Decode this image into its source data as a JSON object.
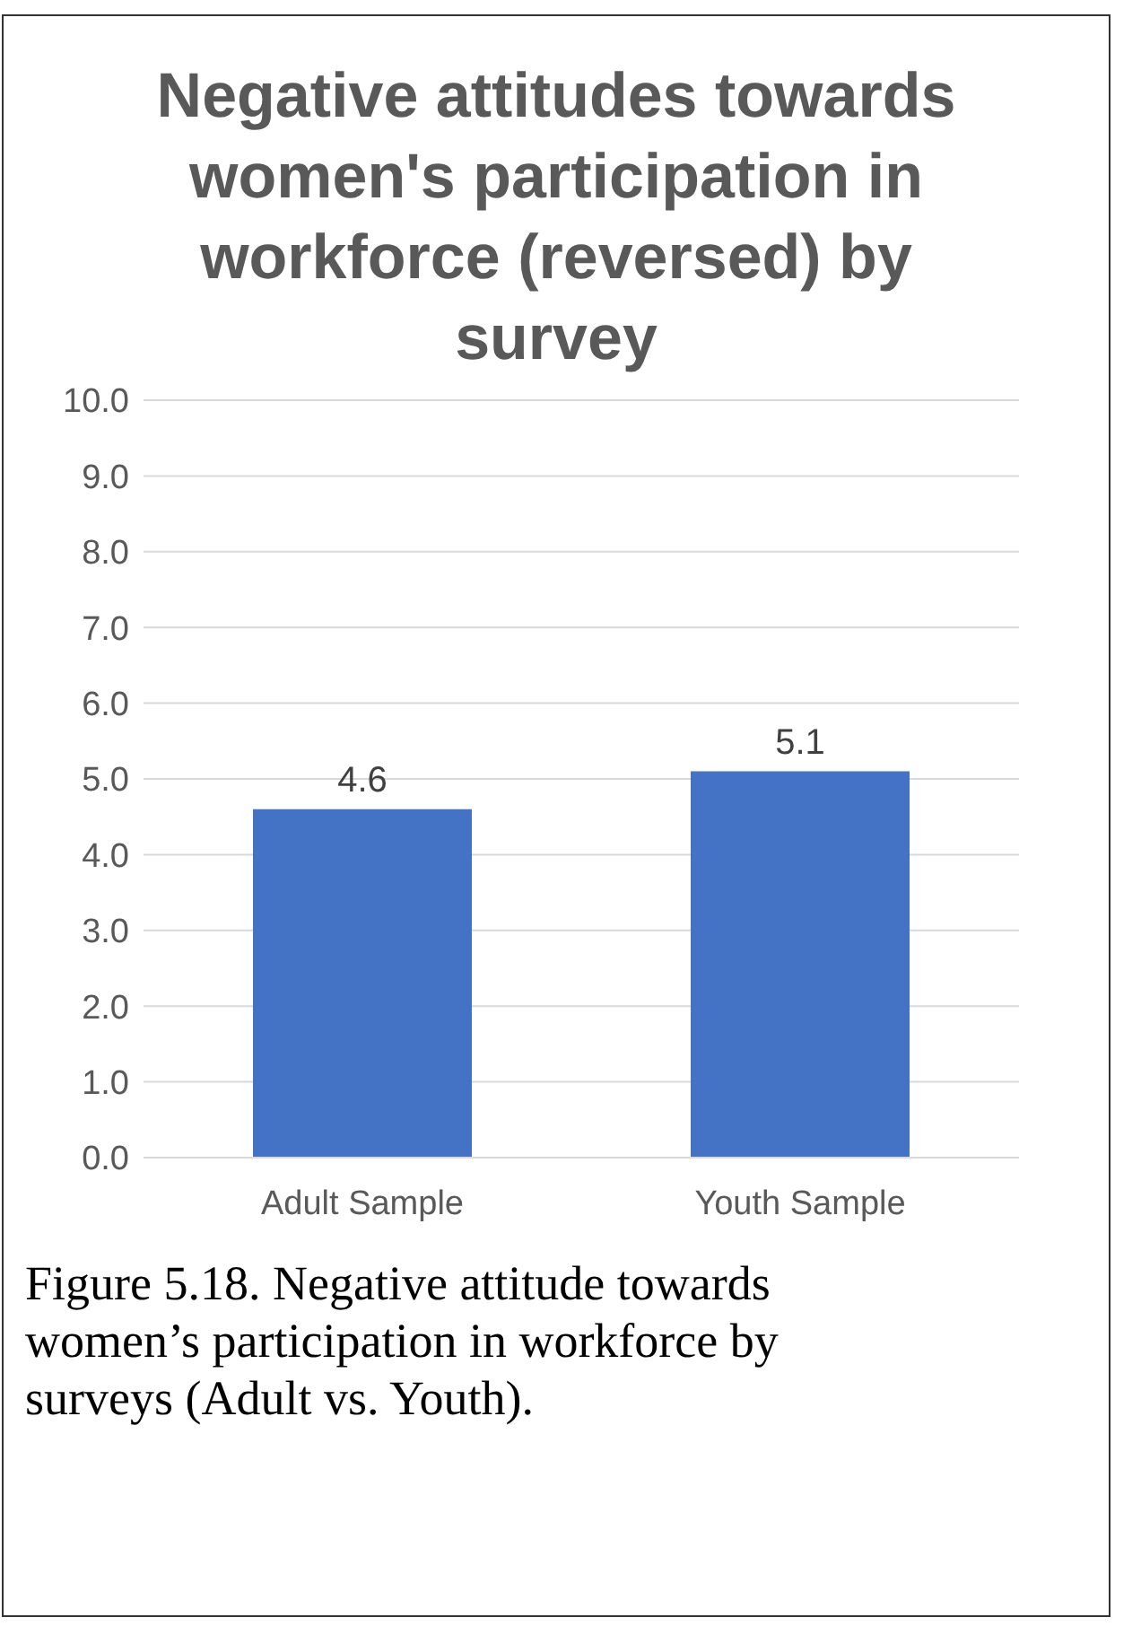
{
  "chart_data": {
    "type": "bar",
    "title": "Negative attitudes towards women's participation in workforce (reversed) by survey",
    "categories": [
      "Adult Sample",
      "Youth Sample"
    ],
    "values": [
      4.6,
      5.1
    ],
    "color": "#4472c4",
    "ylim": [
      0,
      10
    ],
    "yticks": [
      {
        "value": 0,
        "label": "0.0"
      },
      {
        "value": 1,
        "label": "1.0"
      },
      {
        "value": 2,
        "label": "2.0"
      },
      {
        "value": 3,
        "label": "3.0"
      },
      {
        "value": 4,
        "label": "4.0"
      },
      {
        "value": 5,
        "label": "5.0"
      },
      {
        "value": 6,
        "label": "6.0"
      },
      {
        "value": 7,
        "label": "7.0"
      },
      {
        "value": 8,
        "label": "8.0"
      },
      {
        "value": 9,
        "label": "9.0"
      },
      {
        "value": 10,
        "label": "10.0"
      }
    ],
    "grid": "y",
    "data_labels": true,
    "annotations": [
      "Figure 5.18. Negative attitude towards women’s participation in workforce by surveys (Adult vs. Youth)."
    ]
  }
}
